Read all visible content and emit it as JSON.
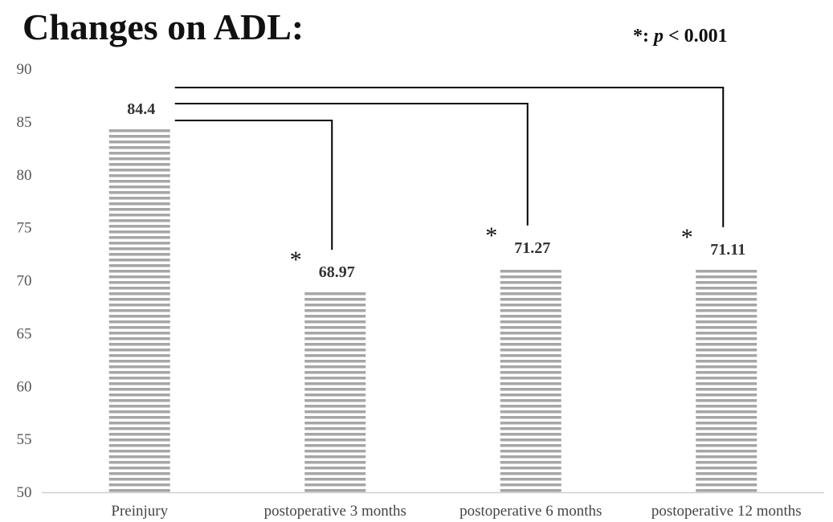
{
  "chart_data": {
    "type": "bar",
    "title": "Changes on ADL:",
    "significance_note": {
      "symbol": "*",
      "separator": ": ",
      "variable": "p",
      "condition": " < 0.001"
    },
    "categories": [
      "Preinjury",
      "postoperative 3 months",
      "postoperative 6 months",
      "postoperative 12 months"
    ],
    "values": [
      84.4,
      68.97,
      71.27,
      71.11
    ],
    "data_labels": [
      "84.4",
      "68.97",
      "71.27",
      "71.11"
    ],
    "yticks": [
      "50",
      "55",
      "60",
      "65",
      "70",
      "75",
      "80",
      "85",
      "90"
    ],
    "ylim": [
      50,
      90
    ],
    "xlabel": "",
    "ylabel": "",
    "grid": false,
    "bar_fill": "horizontal-stripes",
    "colors": {
      "bar_stripe": "#a6a6a6",
      "axis": "#d0d0d0",
      "bracket": "#000000"
    },
    "comparisons": [
      {
        "from": "Preinjury",
        "to": "postoperative 3 months",
        "marker": "*"
      },
      {
        "from": "Preinjury",
        "to": "postoperative 6 months",
        "marker": "*"
      },
      {
        "from": "Preinjury",
        "to": "postoperative 12 months",
        "marker": "*"
      }
    ]
  }
}
